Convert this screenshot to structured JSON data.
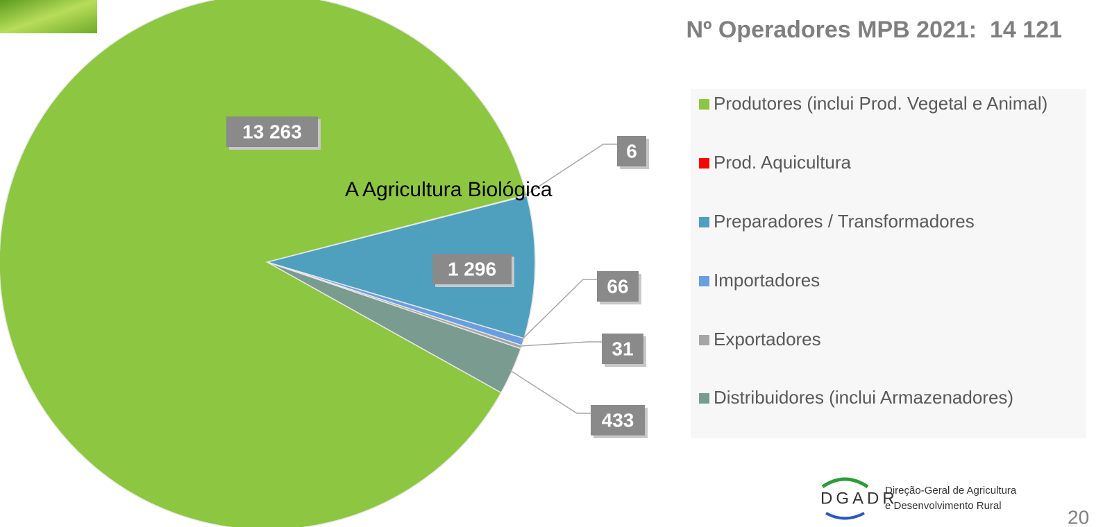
{
  "chart_data": {
    "type": "pie",
    "title": "Nº Operadores MPB 2021:  14 121",
    "annotation": "A Agricultura Biológica",
    "categories": [
      "Produtores (inclui Prod. Vegetal e Animal)",
      "Prod. Aquicultura",
      "Preparadores / Transformadores",
      "Importadores",
      "Exportadores",
      "Distribuidores (inclui Armazenadores)"
    ],
    "values": [
      13263,
      6,
      1296,
      66,
      31,
      433
    ],
    "value_labels": [
      "13 263",
      "6",
      "1 296",
      "66",
      "31",
      "433"
    ],
    "colors": [
      "#8dc641",
      "#ff0000",
      "#4f9fbf",
      "#6a9ee0",
      "#a5a5a5",
      "#7a9b8f"
    ],
    "legend": "right"
  },
  "footer": {
    "logo": "DGADR",
    "org_line1": "Direção-Geral de Agricultura",
    "org_line2": "e Desenvolvimento Rural",
    "page": "20"
  }
}
